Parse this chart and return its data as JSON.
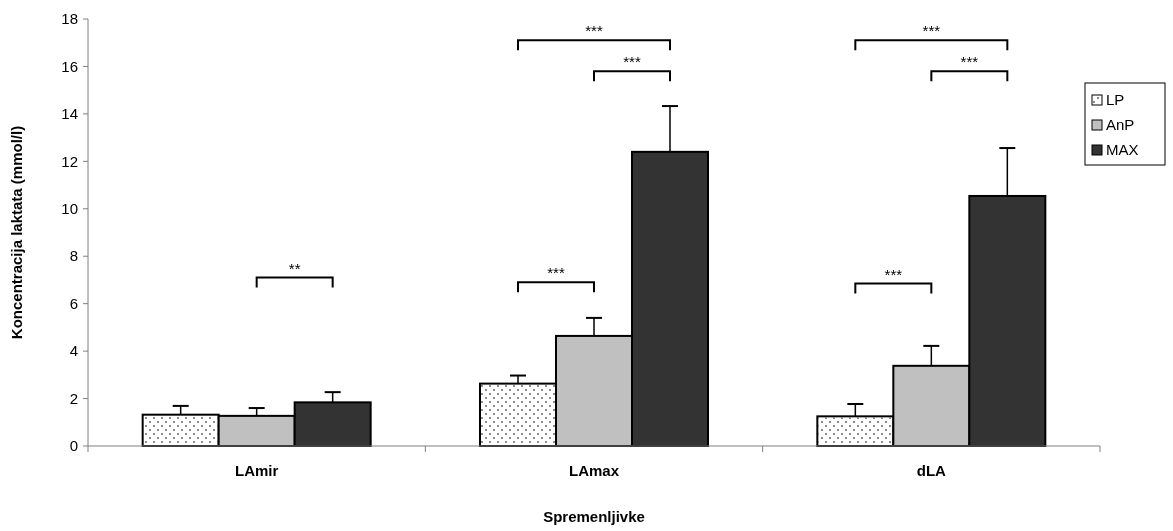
{
  "chart_data": {
    "type": "bar",
    "xlabel": "Spremenljivke",
    "ylabel": "Koncentracija laktata (mmol/l)",
    "categories": [
      "LAmir",
      "LAmax",
      "dLA"
    ],
    "series": [
      {
        "name": "LP",
        "color": "#ffffff",
        "values": [
          1.32,
          2.63,
          1.25
        ],
        "errors": [
          0.37,
          0.34,
          0.52
        ]
      },
      {
        "name": "AnP",
        "color": "#c0c0c0",
        "values": [
          1.27,
          4.64,
          3.38
        ],
        "errors": [
          0.33,
          0.76,
          0.84
        ]
      },
      {
        "name": "MAX",
        "color": "#333333",
        "values": [
          1.84,
          12.4,
          10.54
        ],
        "errors": [
          0.43,
          1.93,
          2.02
        ]
      }
    ],
    "ylim": [
      0,
      18
    ],
    "yticks": [
      0,
      2,
      4,
      6,
      8,
      10,
      12,
      14,
      16,
      18
    ],
    "grid": false,
    "legend": "right",
    "annotations": [
      "**",
      "***",
      "***",
      "***",
      "***",
      "***",
      "***"
    ]
  }
}
